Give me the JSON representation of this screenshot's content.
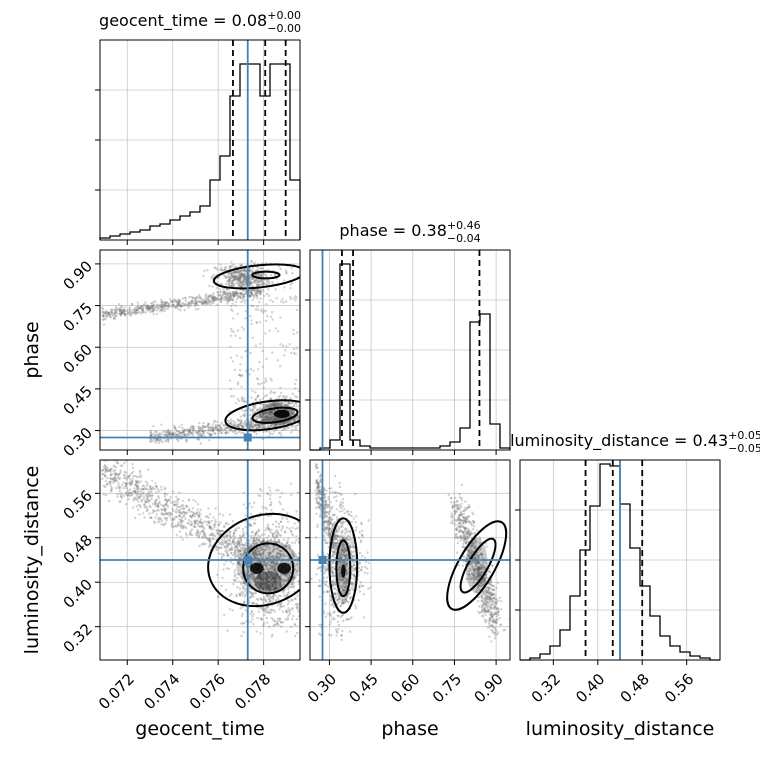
{
  "chart_data": {
    "type": "corner",
    "parameters": [
      "geocent_time",
      "phase",
      "luminosity_distance"
    ],
    "truth": {
      "geocent_time": 0.0773,
      "phase": 0.275,
      "luminosity_distance": 0.44
    },
    "colors": {
      "truth": "#4682b4",
      "hist": "#000000",
      "grid": "#c8c8c8",
      "points": "#7a7a7a"
    },
    "panels": {
      "hist_geocent_time": {
        "title": {
          "base": "geocent_time = 0.08",
          "sup": "+0.00",
          "sub": "−0.00"
        },
        "xlim": [
          0.0708,
          0.0796
        ],
        "ymax": 1.0,
        "quantile_lines": [
          0.07665,
          0.07807,
          0.07897
        ],
        "bin_edges": [
          0.0708,
          0.07124,
          0.07168,
          0.07212,
          0.07256,
          0.073,
          0.07344,
          0.07388,
          0.07432,
          0.07476,
          0.0752,
          0.07564,
          0.07608,
          0.07652,
          0.07696,
          0.0774,
          0.07784,
          0.07828,
          0.07872,
          0.07916,
          0.0796
        ],
        "counts": [
          0.01,
          0.02,
          0.03,
          0.04,
          0.05,
          0.07,
          0.08,
          0.1,
          0.12,
          0.14,
          0.17,
          0.3,
          0.42,
          0.72,
          0.88,
          0.88,
          0.72,
          0.88,
          0.88,
          0.3
        ]
      },
      "hist_phase": {
        "title": {
          "base": "phase = 0.38",
          "sup": "+0.46",
          "sub": "−0.04"
        },
        "xlim": [
          0.23,
          0.95
        ],
        "ymax": 1.0,
        "quantile_lines": [
          0.345,
          0.385,
          0.84
        ],
        "bin_edges": [
          0.23,
          0.266,
          0.302,
          0.338,
          0.374,
          0.41,
          0.446,
          0.482,
          0.518,
          0.554,
          0.59,
          0.626,
          0.662,
          0.698,
          0.734,
          0.77,
          0.806,
          0.842,
          0.878,
          0.914,
          0.95
        ],
        "counts": [
          0.0,
          0.01,
          0.05,
          0.93,
          0.05,
          0.02,
          0.01,
          0.01,
          0.01,
          0.01,
          0.01,
          0.01,
          0.01,
          0.02,
          0.04,
          0.11,
          0.64,
          0.68,
          0.13,
          0.01
        ]
      },
      "hist_luminosity_distance": {
        "title": {
          "base": "luminosity_distance = 0.43",
          "sup": "+0.05",
          "sub": "−0.05"
        },
        "xlim": [
          0.26,
          0.62
        ],
        "ymax": 1.0,
        "quantile_lines": [
          0.378,
          0.427,
          0.48
        ],
        "bin_edges": [
          0.26,
          0.278,
          0.296,
          0.314,
          0.332,
          0.35,
          0.368,
          0.386,
          0.404,
          0.422,
          0.44,
          0.458,
          0.476,
          0.494,
          0.512,
          0.53,
          0.548,
          0.566,
          0.584,
          0.602,
          0.62
        ],
        "counts": [
          0.0,
          0.01,
          0.03,
          0.07,
          0.15,
          0.32,
          0.55,
          0.77,
          0.98,
          0.97,
          0.78,
          0.56,
          0.37,
          0.22,
          0.12,
          0.07,
          0.04,
          0.02,
          0.01,
          0.0
        ]
      },
      "scatter_phase_vs_geocent": {
        "xlim": [
          0.0708,
          0.0796
        ],
        "ylim": [
          0.23,
          0.95
        ]
      },
      "scatter_dist_vs_geocent": {
        "xlim": [
          0.0708,
          0.0796
        ],
        "ylim": [
          0.26,
          0.62
        ]
      },
      "scatter_dist_vs_phase": {
        "xlim": [
          0.23,
          0.95
        ],
        "ylim": [
          0.26,
          0.62
        ]
      }
    },
    "x_ticks": {
      "geocent_time": [
        "0.072",
        "0.074",
        "0.076",
        "0.078"
      ],
      "phase": [
        "0.30",
        "0.45",
        "0.60",
        "0.75",
        "0.90"
      ],
      "luminosity_distance": [
        "0.32",
        "0.40",
        "0.48",
        "0.56"
      ]
    },
    "y_ticks": {
      "phase": [
        "0.30",
        "0.45",
        "0.60",
        "0.75",
        "0.90"
      ],
      "luminosity_distance": [
        "0.32",
        "0.40",
        "0.48",
        "0.56"
      ]
    },
    "xlabels": [
      "geocent_time",
      "phase",
      "luminosity_distance"
    ],
    "ylabels": [
      "phase",
      "luminosity_distance"
    ]
  }
}
